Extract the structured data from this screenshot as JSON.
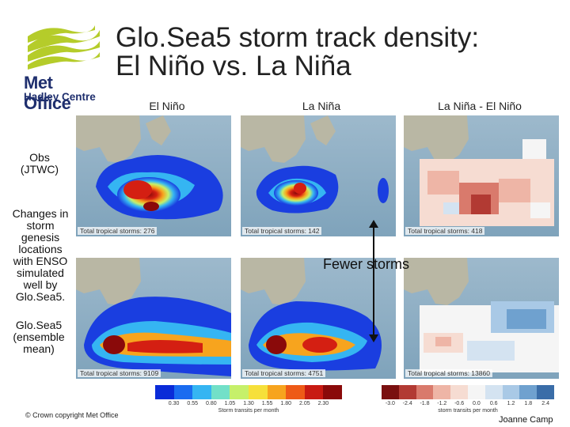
{
  "slide": {
    "title_line1": "Glo.Sea5 storm track density:",
    "title_line2": "El Niño vs. La Niña",
    "logo_text_line1": "Met Office",
    "logo_text_line2": "Hadley Centre",
    "column_headers": [
      "El Niño",
      "La Niña",
      "La Niña - El Niño"
    ],
    "row_labels": {
      "obs_line1": "Obs",
      "obs_line2": "(JTWC)",
      "note": [
        "Changes in",
        "storm",
        "genesis",
        "locations",
        "with ENSO",
        "simulated",
        "well by",
        "Glo.Sea5."
      ],
      "model_line1": "Glo.Sea5",
      "model_line2": "(ensemble",
      "model_line3": "mean)"
    },
    "panel_captions": {
      "obs_elnino": "Total tropical storms: 276",
      "obs_lanina": "Total tropical storms: 142",
      "obs_diff": "Total tropical storms: 418",
      "model_elnino": "Total tropical storms: 9109",
      "model_lanina": "Total tropical storms: 4751",
      "model_diff": "Total tropical storms: 13860"
    },
    "annotation": "Fewer storms",
    "colorbar_density": {
      "ticks": [
        "0.30",
        "0.55",
        "0.80",
        "1.05",
        "1.30",
        "1.55",
        "1.80",
        "2.05",
        "2.30"
      ],
      "label": "Storm transits per month",
      "colors": [
        "#0a2bd8",
        "#1a6cf0",
        "#35b5f2",
        "#72e0c8",
        "#c6f06a",
        "#f6e03a",
        "#f7a41e",
        "#ee5a17",
        "#c81a12",
        "#8a0a0a"
      ]
    },
    "colorbar_diff": {
      "ticks": [
        "-3.0",
        "-2.4",
        "-1.8",
        "-1.2",
        "-0.6",
        "0.0",
        "0.6",
        "1.2",
        "1.8",
        "2.4"
      ],
      "label": "storm transits per month",
      "colors": [
        "#7a1010",
        "#b23a33",
        "#d97a6c",
        "#eeb5a6",
        "#f6dcd2",
        "#f5f5f5",
        "#d4e3f1",
        "#a9c9e6",
        "#6fa1cf",
        "#3a6da8"
      ]
    },
    "copyright": "© Crown copyright   Met Office",
    "author": "Joanne Camp"
  }
}
